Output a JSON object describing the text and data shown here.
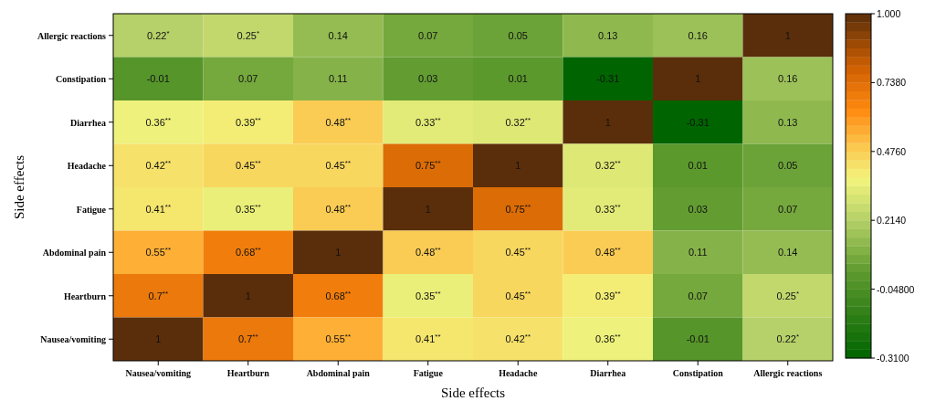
{
  "chart_data": {
    "type": "heatmap",
    "xlabel": "Side effects",
    "ylabel": "Side effects",
    "categories": [
      "Nausea/vomiting",
      "Heartburn",
      "Abdominal pain",
      "Fatigue",
      "Headache",
      "Diarrhea",
      "Constipation",
      "Allergic reactions"
    ],
    "y_categories": [
      "Allergic reactions",
      "Constipation",
      "Diarrhea",
      "Headache",
      "Fatigue",
      "Abdominal pain",
      "Heartburn",
      "Nausea/vomiting"
    ],
    "cells": [
      [
        0.22,
        0.25,
        0.14,
        0.07,
        0.05,
        0.13,
        0.16,
        1
      ],
      [
        -0.01,
        0.07,
        0.11,
        0.03,
        0.01,
        -0.31,
        1,
        0.16
      ],
      [
        0.36,
        0.39,
        0.48,
        0.33,
        0.32,
        1,
        -0.31,
        0.13
      ],
      [
        0.42,
        0.45,
        0.45,
        0.75,
        1,
        0.32,
        0.01,
        0.05
      ],
      [
        0.41,
        0.35,
        0.48,
        1,
        0.75,
        0.33,
        0.03,
        0.07
      ],
      [
        0.55,
        0.68,
        1,
        0.48,
        0.45,
        0.48,
        0.11,
        0.14
      ],
      [
        0.7,
        1,
        0.68,
        0.35,
        0.45,
        0.39,
        0.07,
        0.25
      ],
      [
        1,
        0.7,
        0.55,
        0.41,
        0.42,
        0.36,
        -0.01,
        0.22
      ]
    ],
    "cell_labels": [
      [
        "0.22$^{*}$",
        "0.25$^{*}$",
        "0.14",
        "0.07",
        "0.05",
        "0.13",
        "0.16",
        "1"
      ],
      [
        "-0.01",
        "0.07",
        "0.11",
        "0.03",
        "0.01",
        "-0.31",
        "1",
        "0.16"
      ],
      [
        "0.36$^{**}$",
        "0.39$^{**}$",
        "0.48$^{**}$",
        "0.33$^{**}$",
        "0.32$^{**}$",
        "1",
        "-0.31",
        "0.13"
      ],
      [
        "0.42$^{**}$",
        "0.45$^{**}$",
        "0.45$^{**}$",
        "0.75$^{**}$",
        "1",
        "0.32$^{**}$",
        "0.01",
        "0.05"
      ],
      [
        "0.41$^{**}$",
        "0.35$^{**}$",
        "0.48$^{**}$",
        "1",
        "0.75$^{**}$",
        "0.33$^{**}$",
        "0.03",
        "0.07"
      ],
      [
        "0.55$^{**}$",
        "0.68$^{**}$",
        "1",
        "0.48$^{**}$",
        "0.45$^{**}$",
        "0.48$^{**}$",
        "0.11",
        "0.14"
      ],
      [
        "0.7$^{**}$",
        "1",
        "0.68$^{**}$",
        "0.35$^{**}$",
        "0.45$^{**}$",
        "0.39$^{**}$",
        "0.07",
        "0.25$^{*}$"
      ],
      [
        "1",
        "0.7$^{**}$",
        "0.55$^{**}$",
        "0.41$^{**}$",
        "0.42$^{**}$",
        "0.36$^{**}$",
        "-0.01",
        "0.22$^{*}$"
      ]
    ],
    "clim": [
      -0.31,
      1
    ],
    "cticks": [
      {
        "value": 1,
        "label": "1.000"
      },
      {
        "value": 0.738,
        "label": "0.7380"
      },
      {
        "value": 0.476,
        "label": "0.4760"
      },
      {
        "value": 0.214,
        "label": "0.2140"
      },
      {
        "value": -0.048,
        "label": "-0.04800"
      },
      {
        "value": -0.31,
        "label": "-0.3100"
      }
    ]
  }
}
